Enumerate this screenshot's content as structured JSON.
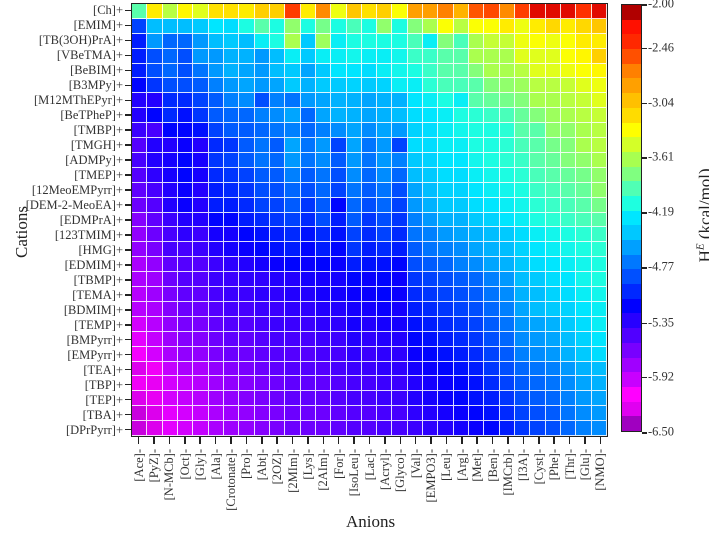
{
  "chart_data": {
    "type": "heatmap",
    "title": "",
    "xlabel": "Anions",
    "ylabel": "Cations",
    "colorbar_label": "H^E (kcal/mol)",
    "colorbar_label_main": "H",
    "colorbar_label_sup": "E",
    "colorbar_label_unit": " (kcal/mol)",
    "colorbar_range": [
      -6.5,
      -2.0
    ],
    "colorbar_ticks": [
      "-2.00",
      "-2.46",
      "-3.04",
      "-3.61",
      "-4.19",
      "-4.77",
      "-5.35",
      "-5.92",
      "-6.50"
    ],
    "colormap": [
      "#a000c0",
      "#e000f0",
      "#ff00ff",
      "#c800ff",
      "#a000ff",
      "#7800ff",
      "#5000ff",
      "#2800ff",
      "#0000ff",
      "#0028ff",
      "#0050ff",
      "#0078ff",
      "#00a0ff",
      "#00c8ff",
      "#00e6ff",
      "#1effe0",
      "#50ffb4",
      "#80ff80",
      "#a8ff50",
      "#d4ff28",
      "#ffff00",
      "#ffdc00",
      "#ffc000",
      "#ffa000",
      "#ff8000",
      "#ff5000",
      "#ff2800",
      "#ff1000",
      "#b00000"
    ],
    "x_categories": [
      "[Ace]-",
      "[PyZ]-",
      "[N-MCb]-",
      "[Oct]-",
      "[Gly]-",
      "[Ala]-",
      "[Crotonate]-",
      "[Pro]-",
      "[Abt]-",
      "[2OZ]-",
      "[2MIm]-",
      "[Lys]-",
      "[2AIm]-",
      "[For]-",
      "[IsoLeu]-",
      "[Lac]-",
      "[Acryl]-",
      "[Glyco]-",
      "[Val]-",
      "[EMPO3]-",
      "[Leu]-",
      "[Arg]-",
      "[Met]-",
      "[Ben]-",
      "[IMCrb]-",
      "[I3A]-",
      "[Cyst]-",
      "[Phe]-",
      "[Thr]-",
      "[Glu]-",
      "[NMO]-"
    ],
    "y_categories": [
      "[Ch]+",
      "[EMIM]+",
      "[TB(3OH)PrA]+",
      "[VBeTMA]+",
      "[BeBIM]+",
      "[B3MPy]+",
      "[M12MThEPyr]+",
      "[BeTPheP]+",
      "[TMBP]+",
      "[TMGH]+",
      "[ADMPy]+",
      "[TMEP]+",
      "[12MeoEMPyrr]+",
      "[DEM-2-MeoEA]+",
      "[EDMPrA]+",
      "[123TMIM]+",
      "[HMG]+",
      "[EDMIM]+",
      "[TBMP]+",
      "[TEMA]+",
      "[BDMIM]+",
      "[TEMP]+",
      "[BMPyrr]+",
      "[EMPyrr]+",
      "[TEA]+",
      "[TBP]+",
      "[TEP]+",
      "[TBA]+",
      "[DPrPyrr]+"
    ],
    "values": [
      [
        -3.9,
        -3.2,
        -3.55,
        -3.25,
        -3.4,
        -3.15,
        -3.15,
        -3.2,
        -3.05,
        -3.05,
        -2.4,
        -3.2,
        -2.7,
        -3.35,
        -3.0,
        -3.15,
        -3.05,
        -3.3,
        -2.8,
        -2.8,
        -2.65,
        -2.9,
        -2.5,
        -2.45,
        -2.7,
        -2.4,
        -2.1,
        -2.1,
        -2.1,
        -2.35,
        -2.1
      ],
      [
        -4.95,
        -4.45,
        -4.45,
        -4.45,
        -4.4,
        -4.25,
        -4.3,
        -4.1,
        -3.9,
        -4.1,
        -3.7,
        -4.1,
        -3.8,
        -4.1,
        -3.95,
        -4.1,
        -3.7,
        -4.1,
        -3.75,
        -3.6,
        -3.3,
        -3.55,
        -3.3,
        -3.3,
        -3.2,
        -3.35,
        -3.2,
        -3.1,
        -3.2,
        -3.1,
        -3.0
      ],
      [
        -5.1,
        -4.6,
        -4.8,
        -4.8,
        -4.6,
        -4.45,
        -4.4,
        -4.45,
        -4.2,
        -4.1,
        -3.6,
        -4.4,
        -3.65,
        -4.2,
        -4.1,
        -4.1,
        -4.1,
        -4.1,
        -3.95,
        -4.2,
        -3.75,
        -3.95,
        -3.6,
        -3.5,
        -3.5,
        -3.35,
        -3.3,
        -3.35,
        -3.3,
        -3.2,
        -3.2
      ],
      [
        -5.1,
        -4.9,
        -4.8,
        -4.9,
        -4.6,
        -4.6,
        -4.5,
        -4.5,
        -4.6,
        -4.45,
        -4.2,
        -4.4,
        -4.2,
        -4.2,
        -4.15,
        -4.2,
        -4.2,
        -4.15,
        -4.0,
        -4.0,
        -3.9,
        -3.9,
        -3.6,
        -3.6,
        -3.6,
        -3.4,
        -3.4,
        -3.4,
        -3.3,
        -3.25,
        -3.05
      ],
      [
        -5.1,
        -4.9,
        -4.8,
        -4.9,
        -4.75,
        -4.6,
        -4.5,
        -4.55,
        -4.6,
        -4.45,
        -4.4,
        -4.55,
        -4.4,
        -4.25,
        -4.25,
        -4.3,
        -4.2,
        -4.15,
        -4.1,
        -4.0,
        -3.9,
        -3.9,
        -3.75,
        -3.6,
        -3.6,
        -3.55,
        -3.4,
        -3.4,
        -3.35,
        -3.3,
        -3.25
      ],
      [
        -5.2,
        -5.0,
        -4.9,
        -4.9,
        -4.85,
        -4.7,
        -4.6,
        -4.55,
        -4.6,
        -4.55,
        -4.4,
        -4.5,
        -4.4,
        -4.4,
        -4.35,
        -4.4,
        -4.35,
        -4.2,
        -4.2,
        -4.05,
        -3.95,
        -3.95,
        -3.9,
        -3.75,
        -3.7,
        -3.65,
        -3.55,
        -3.55,
        -3.5,
        -3.4,
        -3.35
      ],
      [
        -5.35,
        -5.35,
        -5.05,
        -5.05,
        -4.95,
        -4.85,
        -4.7,
        -4.65,
        -4.9,
        -4.7,
        -4.75,
        -4.6,
        -4.55,
        -4.5,
        -4.5,
        -4.55,
        -4.5,
        -4.5,
        -4.25,
        -4.2,
        -4.1,
        -4.2,
        -3.9,
        -3.85,
        -3.8,
        -3.75,
        -3.6,
        -3.6,
        -3.55,
        -3.5,
        -3.4
      ],
      [
        -5.35,
        -5.2,
        -5.05,
        -5.15,
        -5.0,
        -4.85,
        -4.8,
        -4.8,
        -4.7,
        -4.65,
        -4.55,
        -4.8,
        -4.55,
        -4.5,
        -4.5,
        -4.55,
        -4.5,
        -4.45,
        -4.3,
        -4.25,
        -4.2,
        -4.1,
        -4.05,
        -4.0,
        -3.95,
        -3.85,
        -3.75,
        -3.65,
        -3.6,
        -3.55,
        -3.5
      ],
      [
        -5.45,
        -5.5,
        -5.2,
        -5.2,
        -5.15,
        -4.95,
        -4.85,
        -4.85,
        -4.8,
        -4.75,
        -4.7,
        -4.8,
        -4.7,
        -4.65,
        -4.55,
        -4.65,
        -4.55,
        -4.6,
        -4.35,
        -4.3,
        -4.2,
        -4.15,
        -4.1,
        -4.1,
        -4.05,
        -3.9,
        -3.9,
        -3.7,
        -3.7,
        -3.6,
        -3.55
      ],
      [
        -5.55,
        -5.35,
        -5.35,
        -5.25,
        -5.35,
        -5.05,
        -5.0,
        -4.85,
        -4.75,
        -4.85,
        -4.55,
        -4.75,
        -4.6,
        -4.95,
        -4.55,
        -4.75,
        -4.6,
        -4.95,
        -4.3,
        -4.3,
        -4.2,
        -4.2,
        -4.1,
        -4.1,
        -4.05,
        -3.95,
        -3.9,
        -3.8,
        -3.75,
        -3.6,
        -3.55
      ],
      [
        -5.5,
        -5.35,
        -5.3,
        -5.2,
        -5.3,
        -5.0,
        -4.95,
        -4.85,
        -4.75,
        -4.8,
        -4.6,
        -4.75,
        -4.65,
        -4.85,
        -4.6,
        -4.75,
        -4.6,
        -4.7,
        -4.4,
        -4.35,
        -4.25,
        -4.25,
        -4.15,
        -4.1,
        -4.05,
        -4.0,
        -3.9,
        -3.85,
        -3.75,
        -3.7,
        -3.6
      ],
      [
        -5.55,
        -5.4,
        -5.3,
        -5.2,
        -5.3,
        -5.05,
        -5.0,
        -4.95,
        -4.85,
        -4.85,
        -4.7,
        -4.85,
        -4.75,
        -4.9,
        -4.65,
        -4.8,
        -4.65,
        -4.8,
        -4.45,
        -4.4,
        -4.3,
        -4.3,
        -4.2,
        -4.15,
        -4.1,
        -4.05,
        -3.95,
        -3.9,
        -3.85,
        -3.8,
        -3.7
      ],
      [
        -5.6,
        -5.5,
        -5.35,
        -5.25,
        -5.35,
        -5.1,
        -5.05,
        -5.0,
        -4.9,
        -4.9,
        -4.8,
        -4.9,
        -4.8,
        -4.95,
        -4.75,
        -4.85,
        -4.75,
        -4.9,
        -4.55,
        -4.45,
        -4.35,
        -4.35,
        -4.25,
        -4.2,
        -4.15,
        -4.1,
        -4.0,
        -3.95,
        -3.9,
        -3.85,
        -3.7
      ],
      [
        -5.65,
        -5.55,
        -5.35,
        -5.25,
        -5.35,
        -5.1,
        -5.1,
        -5.05,
        -4.95,
        -4.95,
        -4.85,
        -5.0,
        -4.85,
        -5.2,
        -4.8,
        -4.9,
        -4.8,
        -4.95,
        -4.6,
        -4.5,
        -4.4,
        -4.4,
        -4.3,
        -4.25,
        -4.2,
        -4.15,
        -4.05,
        -4.0,
        -3.95,
        -3.9,
        -3.8
      ],
      [
        -5.75,
        -5.6,
        -5.45,
        -5.35,
        -5.35,
        -5.2,
        -5.2,
        -5.1,
        -5.05,
        -5.0,
        -4.95,
        -5.05,
        -4.9,
        -5.1,
        -4.85,
        -5.0,
        -4.9,
        -5.0,
        -4.7,
        -4.6,
        -4.5,
        -4.5,
        -4.4,
        -4.35,
        -4.25,
        -4.2,
        -4.1,
        -4.05,
        -4.0,
        -3.95,
        -3.9
      ],
      [
        -5.8,
        -5.65,
        -5.5,
        -5.4,
        -5.45,
        -5.3,
        -5.3,
        -5.2,
        -5.15,
        -5.1,
        -5.05,
        -5.15,
        -5.05,
        -5.15,
        -4.95,
        -5.05,
        -4.95,
        -5.05,
        -4.75,
        -4.7,
        -4.6,
        -4.55,
        -4.5,
        -4.45,
        -4.4,
        -4.3,
        -4.2,
        -4.15,
        -4.1,
        -4.05,
        -4.0
      ],
      [
        -5.8,
        -5.7,
        -5.5,
        -5.5,
        -5.45,
        -5.35,
        -5.3,
        -5.25,
        -5.2,
        -5.15,
        -5.1,
        -5.2,
        -5.1,
        -5.2,
        -5.0,
        -5.1,
        -5.05,
        -5.1,
        -4.85,
        -4.75,
        -4.7,
        -4.65,
        -4.55,
        -4.5,
        -4.45,
        -4.35,
        -4.25,
        -4.2,
        -4.15,
        -4.1,
        -4.05
      ],
      [
        -5.9,
        -5.8,
        -5.6,
        -5.55,
        -5.55,
        -5.45,
        -5.4,
        -5.35,
        -5.3,
        -5.25,
        -5.2,
        -5.25,
        -5.2,
        -5.25,
        -5.1,
        -5.15,
        -5.15,
        -5.2,
        -4.9,
        -4.85,
        -4.8,
        -4.7,
        -4.65,
        -4.55,
        -4.5,
        -4.4,
        -4.3,
        -4.25,
        -4.2,
        -4.15,
        -4.1
      ],
      [
        -5.9,
        -5.85,
        -5.65,
        -5.55,
        -5.55,
        -5.45,
        -5.45,
        -5.4,
        -5.4,
        -5.35,
        -5.35,
        -5.3,
        -5.3,
        -5.3,
        -5.2,
        -5.25,
        -5.2,
        -5.25,
        -5.0,
        -4.95,
        -4.9,
        -4.85,
        -4.8,
        -4.7,
        -4.6,
        -4.45,
        -4.4,
        -4.3,
        -4.25,
        -4.15,
        -4.1
      ],
      [
        -5.95,
        -5.85,
        -5.7,
        -5.6,
        -5.6,
        -5.5,
        -5.45,
        -5.45,
        -5.4,
        -5.4,
        -5.35,
        -5.35,
        -5.3,
        -5.3,
        -5.25,
        -5.25,
        -5.2,
        -5.25,
        -5.05,
        -5.0,
        -4.95,
        -4.9,
        -4.85,
        -4.75,
        -4.65,
        -4.5,
        -4.45,
        -4.35,
        -4.3,
        -4.2,
        -4.15
      ],
      [
        -5.95,
        -5.9,
        -5.75,
        -5.65,
        -5.65,
        -5.55,
        -5.5,
        -5.5,
        -5.45,
        -5.45,
        -5.4,
        -5.4,
        -5.35,
        -5.35,
        -5.3,
        -5.3,
        -5.25,
        -5.3,
        -5.1,
        -5.05,
        -5.0,
        -4.95,
        -4.9,
        -4.8,
        -4.7,
        -4.55,
        -4.45,
        -4.4,
        -4.35,
        -4.25,
        -4.2
      ],
      [
        -6.05,
        -5.95,
        -5.8,
        -5.7,
        -5.7,
        -5.6,
        -5.55,
        -5.55,
        -5.5,
        -5.45,
        -5.45,
        -5.45,
        -5.4,
        -5.4,
        -5.3,
        -5.35,
        -5.3,
        -5.3,
        -5.15,
        -5.1,
        -5.05,
        -5.0,
        -4.95,
        -4.85,
        -4.75,
        -4.6,
        -4.55,
        -4.5,
        -4.4,
        -4.3,
        -4.2
      ],
      [
        -6.1,
        -6.0,
        -5.85,
        -5.75,
        -5.75,
        -5.65,
        -5.6,
        -5.6,
        -5.55,
        -5.5,
        -5.5,
        -5.5,
        -5.45,
        -5.45,
        -5.35,
        -5.4,
        -5.35,
        -5.35,
        -5.2,
        -5.15,
        -5.1,
        -5.05,
        -5.0,
        -4.9,
        -4.8,
        -4.65,
        -4.6,
        -4.55,
        -4.45,
        -4.35,
        -4.25
      ],
      [
        -6.15,
        -6.05,
        -5.9,
        -5.8,
        -5.8,
        -5.7,
        -5.65,
        -5.65,
        -5.6,
        -5.55,
        -5.55,
        -5.55,
        -5.5,
        -5.5,
        -5.4,
        -5.45,
        -5.4,
        -5.4,
        -5.25,
        -5.2,
        -5.15,
        -5.1,
        -5.05,
        -4.95,
        -4.85,
        -4.7,
        -4.65,
        -4.6,
        -4.5,
        -4.4,
        -4.3
      ],
      [
        -6.35,
        -6.25,
        -6.0,
        -5.9,
        -5.9,
        -5.8,
        -5.75,
        -5.7,
        -5.65,
        -5.6,
        -5.55,
        -5.55,
        -5.55,
        -5.5,
        -5.45,
        -5.45,
        -5.4,
        -5.4,
        -5.3,
        -5.25,
        -5.2,
        -5.15,
        -5.1,
        -5.0,
        -4.9,
        -4.8,
        -4.75,
        -4.7,
        -4.6,
        -4.5,
        -4.45
      ],
      [
        -6.25,
        -6.3,
        -6.05,
        -6.0,
        -5.95,
        -5.85,
        -5.8,
        -5.75,
        -5.7,
        -5.65,
        -5.6,
        -5.6,
        -5.6,
        -5.55,
        -5.5,
        -5.5,
        -5.45,
        -5.45,
        -5.35,
        -5.3,
        -5.25,
        -5.2,
        -5.15,
        -5.05,
        -4.95,
        -4.85,
        -4.8,
        -4.75,
        -4.65,
        -4.55,
        -4.5
      ],
      [
        -6.35,
        -6.3,
        -6.05,
        -6.0,
        -5.95,
        -5.85,
        -5.8,
        -5.75,
        -5.7,
        -5.65,
        -5.6,
        -5.6,
        -5.6,
        -5.55,
        -5.5,
        -5.5,
        -5.45,
        -5.45,
        -5.35,
        -5.3,
        -5.25,
        -5.2,
        -5.15,
        -5.1,
        -5.0,
        -4.9,
        -4.85,
        -4.8,
        -4.7,
        -4.6,
        -4.55
      ],
      [
        -6.4,
        -6.35,
        -6.1,
        -6.05,
        -6.0,
        -5.9,
        -5.85,
        -5.8,
        -5.75,
        -5.7,
        -5.65,
        -5.65,
        -5.65,
        -5.6,
        -5.55,
        -5.55,
        -5.5,
        -5.5,
        -5.4,
        -5.35,
        -5.3,
        -5.25,
        -5.2,
        -5.15,
        -5.05,
        -4.95,
        -4.9,
        -4.85,
        -4.75,
        -4.65,
        -4.6
      ],
      [
        -6.4,
        -6.35,
        -6.1,
        -6.05,
        -6.0,
        -5.9,
        -5.85,
        -5.8,
        -5.75,
        -5.7,
        -5.65,
        -5.65,
        -5.65,
        -5.6,
        -5.55,
        -5.55,
        -5.5,
        -5.5,
        -5.45,
        -5.4,
        -5.35,
        -5.3,
        -5.25,
        -5.2,
        -5.1,
        -5.0,
        -4.95,
        -4.9,
        -4.8,
        -4.7,
        -4.65
      ]
    ]
  }
}
